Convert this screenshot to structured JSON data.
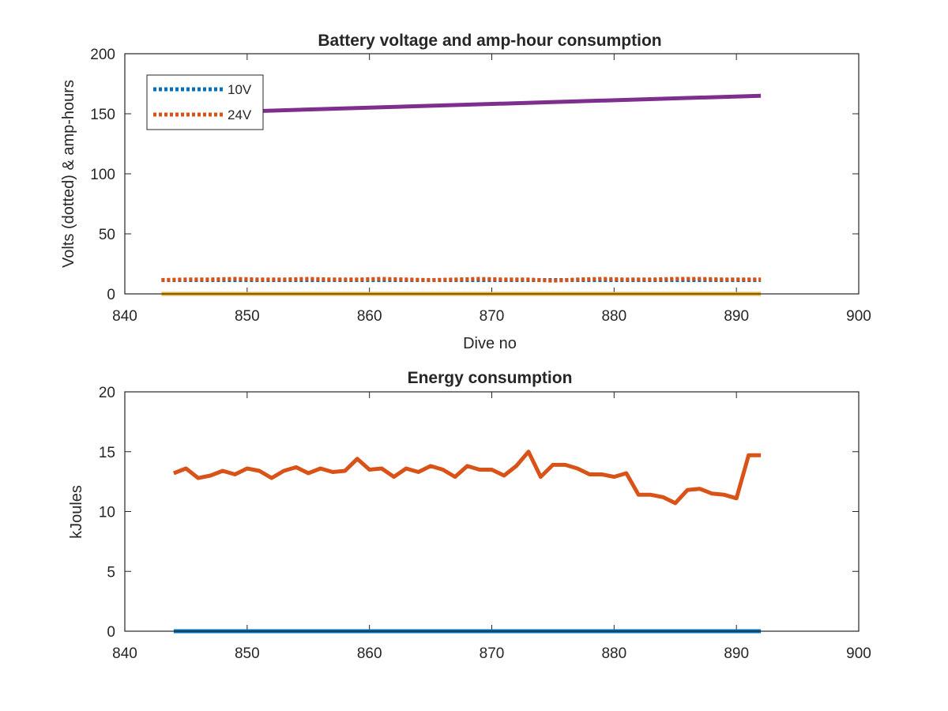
{
  "chart_data": [
    {
      "type": "line",
      "title": "Battery voltage and amp-hour consumption",
      "xlabel": "Dive no",
      "ylabel": "Volts (dotted) & amp-hours",
      "xlim": [
        840,
        900
      ],
      "ylim": [
        0,
        200
      ],
      "xticks": [
        840,
        850,
        860,
        870,
        880,
        890,
        900
      ],
      "yticks": [
        0,
        50,
        100,
        150,
        200
      ],
      "grid": false,
      "legend_position": "top-left",
      "series": [
        {
          "name": "10V",
          "style": "dotted",
          "color": "#0072BD",
          "x": [
            843,
            892
          ],
          "y": [
            11.5,
            11.5
          ]
        },
        {
          "name": "24V",
          "style": "dotted",
          "color": "#D95319",
          "x": [
            843,
            845,
            847,
            849,
            851,
            853,
            855,
            857,
            859,
            861,
            863,
            865,
            867,
            869,
            871,
            873,
            875,
            877,
            879,
            881,
            883,
            885,
            887,
            889,
            892
          ],
          "y": [
            11.5,
            12,
            12,
            12.5,
            12,
            12,
            12.5,
            12,
            12,
            12.5,
            12,
            11.5,
            12,
            12.5,
            12,
            12,
            11,
            12,
            12.5,
            12,
            12,
            12.5,
            12.5,
            12,
            12
          ]
        },
        {
          "style": "solid",
          "color": "#EDB120",
          "x": [
            843,
            892
          ],
          "y": [
            0,
            0
          ]
        },
        {
          "style": "solid",
          "color": "#7E2F8E",
          "x": [
            850,
            892
          ],
          "y": [
            152,
            165
          ]
        }
      ]
    },
    {
      "type": "line",
      "title": "Energy consumption",
      "xlabel": "",
      "ylabel": "kJoules",
      "xlim": [
        840,
        900
      ],
      "ylim": [
        0,
        20
      ],
      "xticks": [
        840,
        850,
        860,
        870,
        880,
        890,
        900
      ],
      "yticks": [
        0,
        5,
        10,
        15,
        20
      ],
      "grid": false,
      "series": [
        {
          "style": "solid",
          "color": "#D95319",
          "x": [
            844,
            845,
            846,
            847,
            848,
            849,
            850,
            851,
            852,
            853,
            854,
            855,
            856,
            857,
            858,
            859,
            860,
            861,
            862,
            863,
            864,
            865,
            866,
            867,
            868,
            869,
            870,
            871,
            872,
            873,
            874,
            875,
            876,
            877,
            878,
            879,
            880,
            881,
            882,
            883,
            884,
            885,
            886,
            887,
            888,
            889,
            890,
            891,
            892
          ],
          "y": [
            13.2,
            13.6,
            12.8,
            13.0,
            13.4,
            13.1,
            13.6,
            13.4,
            12.8,
            13.4,
            13.7,
            13.2,
            13.6,
            13.3,
            13.4,
            14.4,
            13.5,
            13.6,
            12.9,
            13.6,
            13.3,
            13.8,
            13.5,
            12.9,
            13.8,
            13.5,
            13.5,
            13.0,
            13.8,
            15.0,
            12.9,
            13.9,
            13.9,
            13.6,
            13.1,
            13.1,
            12.9,
            13.2,
            11.4,
            11.4,
            11.2,
            10.7,
            11.8,
            11.9,
            11.5,
            11.4,
            11.1,
            14.7,
            14.7
          ]
        },
        {
          "style": "solid",
          "color": "#0072BD",
          "x": [
            844,
            892
          ],
          "y": [
            0,
            0
          ]
        }
      ]
    }
  ]
}
